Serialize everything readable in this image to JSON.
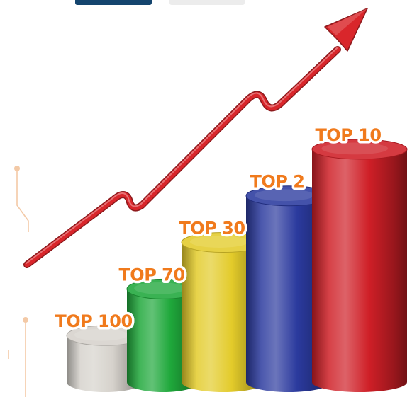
{
  "chart_data": {
    "type": "bar",
    "style": "3d-cylinders",
    "categories": [
      "TOP 100",
      "TOP 70",
      "TOP 30",
      "TOP 2",
      "TOP 10"
    ],
    "values": [
      1,
      2,
      3,
      4,
      5
    ],
    "ylim": [
      0,
      5.5
    ],
    "colors": [
      "#d6d2cc",
      "#1fa83b",
      "#e3cb2a",
      "#2b3a9e",
      "#cf1f27"
    ],
    "label_color": "#f07a1c",
    "trend_arrow": {
      "color": "#d9262b",
      "direction": "up-right"
    },
    "grid": false,
    "legend": "none"
  },
  "top_buttons": [
    {
      "color": "#14456e"
    },
    {
      "color": "#ececec"
    }
  ],
  "decoration": {
    "circuit_color": "#f3c9a6"
  }
}
